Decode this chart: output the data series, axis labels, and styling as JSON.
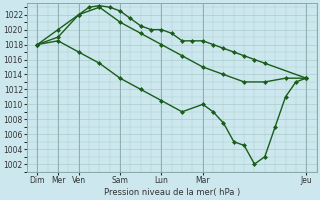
{
  "xlabel": "Pression niveau de la mer( hPa )",
  "background_color": "#cce8ee",
  "grid_color": "#aacccc",
  "line_color": "#1a5c1a",
  "ylim": [
    1001,
    1023.5
  ],
  "yticks": [
    1002,
    1004,
    1006,
    1008,
    1010,
    1012,
    1014,
    1016,
    1018,
    1020,
    1022
  ],
  "xlim": [
    0,
    28
  ],
  "xtick_labels": [
    "Dim",
    "Mer",
    "Ven",
    "Sam",
    "Lun",
    "Mar",
    "Jeu"
  ],
  "xtick_positions": [
    1,
    3,
    5,
    9,
    13,
    17,
    27
  ],
  "series1": {
    "x": [
      1,
      3,
      5,
      6,
      7,
      8,
      9,
      10,
      11,
      12,
      13,
      14,
      15,
      16,
      17,
      18,
      19,
      20,
      21,
      22,
      23,
      27
    ],
    "y": [
      1018,
      1019,
      1022,
      1023,
      1023.2,
      1023,
      1022.5,
      1021.5,
      1020.5,
      1020,
      1020,
      1019.5,
      1018.5,
      1018.5,
      1018.5,
      1018,
      1017.5,
      1017,
      1016.5,
      1016,
      1015.5,
      1013.5
    ]
  },
  "series2": {
    "x": [
      1,
      3,
      5,
      7,
      9,
      11,
      13,
      15,
      17,
      19,
      21,
      23,
      25,
      27
    ],
    "y": [
      1018,
      1020,
      1022,
      1023,
      1021,
      1019.5,
      1018,
      1016.5,
      1015,
      1014,
      1013,
      1013,
      1013.5,
      1013.5
    ]
  },
  "series3": {
    "x": [
      1,
      3,
      5,
      7,
      9,
      11,
      13,
      15,
      17,
      18,
      19,
      20,
      21,
      22,
      23,
      24,
      25,
      26,
      27
    ],
    "y": [
      1018,
      1018.5,
      1017,
      1015.5,
      1013.5,
      1012,
      1010.5,
      1009,
      1010,
      1009,
      1007.5,
      1005,
      1004.5,
      1002,
      1003,
      1007,
      1011,
      1013,
      1013.5
    ]
  },
  "marker": "D",
  "markersize": 2.0,
  "linewidth": 1.0
}
